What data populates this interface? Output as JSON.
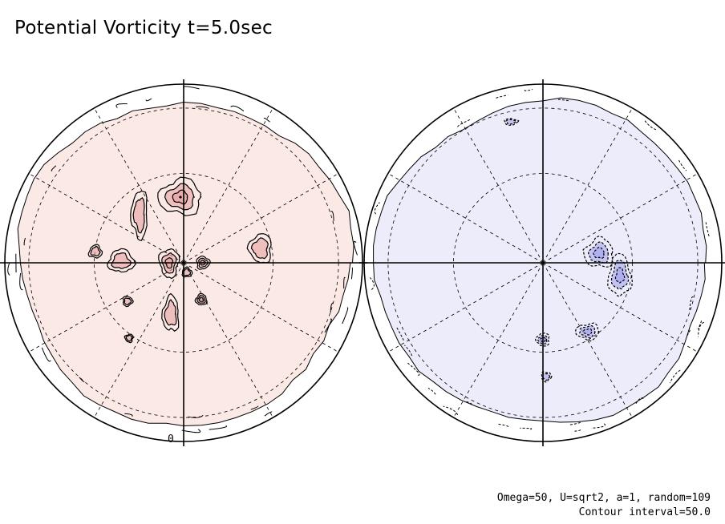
{
  "chart_data": {
    "type": "contour",
    "title": "Potential Vorticity t=5.0sec",
    "projection": "polar-orthographic",
    "panels": [
      {
        "hemisphere": "northern",
        "shading": "positive",
        "fill_color": "#fbe9e6",
        "peak_color": "#e7a3a3",
        "zero_contour_label": "0"
      },
      {
        "hemisphere": "southern",
        "shading": "negative",
        "fill_color": "#ececfb",
        "peak_color": "#a9a9ee",
        "zero_contour_label": ""
      }
    ],
    "parameters": {
      "Omega": "50",
      "U": "sqrt2",
      "a": "1",
      "random": "109"
    },
    "contour_interval": 50.0,
    "annotation_line1": "Omega=50, U=sqrt2, a=1, random=109",
    "annotation_line2": "Contour interval=50.0",
    "graticule": {
      "latitude_circles_deg": [
        30,
        60
      ],
      "meridian_spacing_deg": 30,
      "grid": true
    }
  }
}
